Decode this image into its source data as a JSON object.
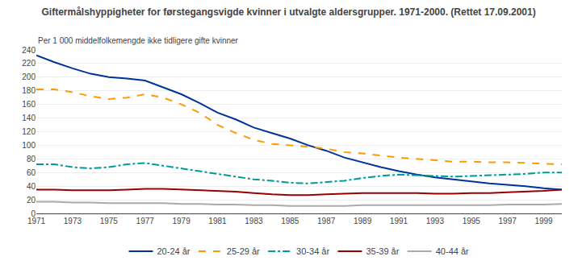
{
  "chart_data": {
    "type": "line",
    "title": "Giftermålshyppigheter for førstegangsvigde kvinner i utvalgte aldersgrupper. 1971-2000. (Rettet 17.09.2001)",
    "subtitle": "Per 1 000 middelfolkemengde ikke tidligere gifte kvinner",
    "x": [
      1971,
      1972,
      1973,
      1974,
      1975,
      1976,
      1977,
      1978,
      1979,
      1980,
      1981,
      1982,
      1983,
      1984,
      1985,
      1986,
      1987,
      1988,
      1989,
      1990,
      1991,
      1992,
      1993,
      1994,
      1995,
      1996,
      1997,
      1998,
      1999,
      2000
    ],
    "series": [
      {
        "name": "20-24 år",
        "color": "#003399",
        "line_style": "solid",
        "values": [
          232,
          222,
          213,
          205,
          200,
          198,
          195,
          185,
          175,
          162,
          148,
          138,
          126,
          118,
          110,
          100,
          92,
          82,
          75,
          68,
          62,
          57,
          53,
          50,
          47,
          44,
          42,
          40,
          37,
          35
        ]
      },
      {
        "name": "25-29 år",
        "color": "#ff9900",
        "line_style": "dash",
        "values": [
          182,
          182,
          178,
          172,
          168,
          170,
          175,
          170,
          160,
          148,
          130,
          118,
          108,
          102,
          100,
          98,
          95,
          90,
          88,
          85,
          82,
          80,
          78,
          76,
          76,
          75,
          75,
          74,
          73,
          72
        ]
      },
      {
        "name": "30-34 år",
        "color": "#009999",
        "line_style": "dashdot",
        "values": [
          72,
          72,
          68,
          66,
          68,
          72,
          74,
          70,
          66,
          62,
          58,
          54,
          50,
          48,
          45,
          44,
          46,
          48,
          52,
          55,
          57,
          56,
          55,
          54,
          55,
          56,
          57,
          58,
          60,
          60
        ]
      },
      {
        "name": "35-39 år",
        "color": "#990000",
        "line_style": "solid",
        "values": [
          35,
          35,
          34,
          34,
          34,
          35,
          36,
          36,
          35,
          34,
          33,
          32,
          30,
          28,
          27,
          27,
          28,
          29,
          30,
          30,
          30,
          30,
          29,
          29,
          30,
          30,
          31,
          32,
          33,
          35
        ]
      },
      {
        "name": "40-44 år",
        "color": "#aaaaaa",
        "line_style": "solid",
        "values": [
          17,
          17,
          16,
          16,
          15,
          15,
          15,
          15,
          14,
          14,
          13,
          13,
          12,
          12,
          11,
          11,
          11,
          11,
          12,
          12,
          12,
          12,
          12,
          12,
          12,
          12,
          13,
          13,
          13,
          14
        ]
      }
    ],
    "xlim": [
      1971,
      2000
    ],
    "xticks": [
      1971,
      1973,
      1975,
      1977,
      1979,
      1981,
      1983,
      1985,
      1987,
      1989,
      1991,
      1993,
      1995,
      1997,
      1999
    ],
    "ylim": [
      0,
      240
    ],
    "yticks": [
      0,
      20,
      40,
      60,
      80,
      100,
      120,
      140,
      160,
      180,
      200,
      220,
      240
    ],
    "grid": "y",
    "legend": "bottom"
  }
}
